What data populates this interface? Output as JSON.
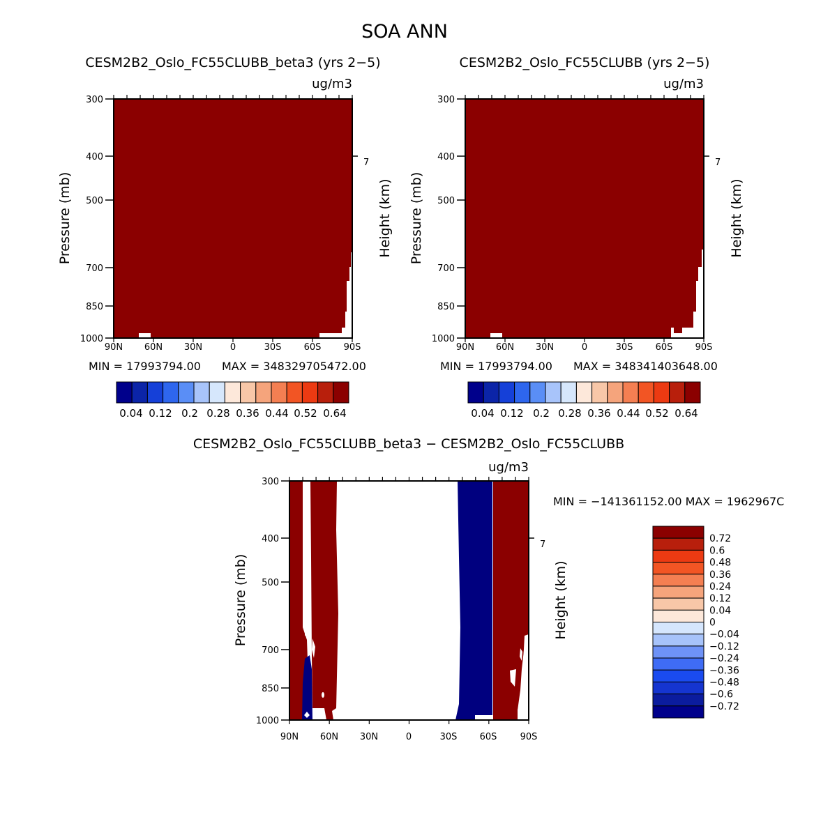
{
  "figure_title": "SOA ANN",
  "colors": {
    "dark_red": "#8B0000",
    "navy": "#00007F",
    "top_colorbar": [
      "#00008B",
      "#0B24A8",
      "#1540D8",
      "#2E66EE",
      "#5A8EF6",
      "#A8C4FA",
      "#D6E7FC",
      "#FDE8DA",
      "#F8C7A8",
      "#F5A47C",
      "#F47F52",
      "#F25524",
      "#EC3A12",
      "#B81F0C",
      "#8B0000"
    ],
    "diff_colorbar": [
      "#00008B",
      "#0B1C9E",
      "#1535D0",
      "#1A4BF0",
      "#3F6CF5",
      "#6E92F7",
      "#A7C3FA",
      "#D5E6FD",
      "#FDE8DA",
      "#F8C7A8",
      "#F5A47C",
      "#F47F52",
      "#F25524",
      "#EC3A12",
      "#B81F0C",
      "#8B0000"
    ]
  },
  "chart_data": [
    {
      "type": "heatmap",
      "panel": "left",
      "title": "CESM2B2_Oslo_FC55CLUBB_beta3 (yrs 2−5)",
      "units": "ug/m3",
      "ylabel": "Pressure (mb)",
      "right_label": "Height (km)",
      "right_ticks": [
        "7"
      ],
      "yticks": [
        "300",
        "400",
        "500",
        "700",
        "850",
        "1000"
      ],
      "xticks": [
        "90N",
        "60N",
        "30N",
        "0",
        "30S",
        "60S",
        "90S"
      ],
      "ylim": [
        1000,
        300
      ],
      "xlim": [
        "90N",
        "90S"
      ],
      "fill": "uniform max class (dark red) except near-surface gaps",
      "min_text": "MIN = 17993794.00",
      "max_text": "MAX = 348329705472.00",
      "colorbar_labels": [
        "0.04",
        "0.12",
        "0.2",
        "0.28",
        "0.36",
        "0.44",
        "0.52",
        "0.64"
      ]
    },
    {
      "type": "heatmap",
      "panel": "right",
      "title": "CESM2B2_Oslo_FC55CLUBB (yrs 2−5)",
      "units": "ug/m3",
      "ylabel": "Pressure (mb)",
      "right_label": "Height (km)",
      "right_ticks": [
        "7"
      ],
      "yticks": [
        "300",
        "400",
        "500",
        "700",
        "850",
        "1000"
      ],
      "xticks": [
        "90N",
        "60N",
        "30N",
        "0",
        "30S",
        "60S",
        "90S"
      ],
      "ylim": [
        1000,
        300
      ],
      "xlim": [
        "90N",
        "90S"
      ],
      "fill": "uniform max class (dark red) except near-surface gaps",
      "min_text": "MIN = 17993794.00",
      "max_text": "MAX = 348341403648.00",
      "colorbar_labels": [
        "0.04",
        "0.12",
        "0.2",
        "0.28",
        "0.36",
        "0.44",
        "0.52",
        "0.64"
      ]
    },
    {
      "type": "heatmap",
      "panel": "difference",
      "title": "CESM2B2_Oslo_FC55CLUBB_beta3 − CESM2B2_Oslo_FC55CLUBB",
      "units": "ug/m3",
      "ylabel": "Pressure (mb)",
      "right_label": "Height (km)",
      "right_ticks": [
        "7"
      ],
      "yticks": [
        "300",
        "400",
        "500",
        "700",
        "850",
        "1000"
      ],
      "xticks": [
        "90N",
        "60N",
        "30N",
        "0",
        "30S",
        "60S",
        "90S"
      ],
      "ylim": [
        1000,
        300
      ],
      "xlim": [
        "90N",
        "90S"
      ],
      "fill": "positive bands near 90N-60N and 60S-90S, negative band near 35S-60S",
      "minmax_text": "MIN = −141361152.00   MAX = 1962967C",
      "colorbar_labels": [
        "0.72",
        "0.6",
        "0.48",
        "0.36",
        "0.24",
        "0.12",
        "0.04",
        "0",
        "−0.04",
        "−0.12",
        "−0.24",
        "−0.36",
        "−0.48",
        "−0.6",
        "−0.72"
      ]
    }
  ]
}
